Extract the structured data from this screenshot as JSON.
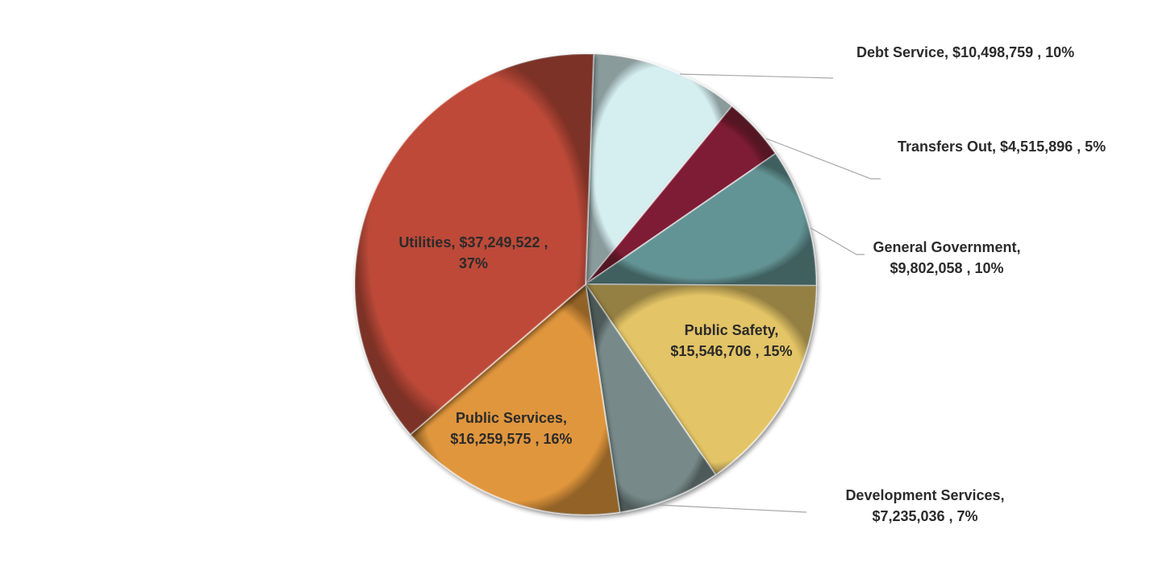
{
  "chart_data": {
    "type": "pie",
    "title": "",
    "slices": [
      {
        "name": "Debt Service",
        "value": 10498759,
        "value_label": "$10,498,759",
        "pct_label": "10%",
        "color": "#d5eef0",
        "label_lines": [
          "Debt Service,  $10,498,759 , 10%"
        ]
      },
      {
        "name": "Transfers Out",
        "value": 4515896,
        "value_label": "$4,515,896",
        "pct_label": "5%",
        "color": "#7f1d34",
        "label_lines": [
          "Transfers Out,  $4,515,896 , 5%"
        ]
      },
      {
        "name": "General Government",
        "value": 9802058,
        "value_label": "$9,802,058",
        "pct_label": "10%",
        "color": "#649495",
        "label_lines": [
          "General Government,",
          "$9,802,058 , 10%"
        ]
      },
      {
        "name": "Public Safety",
        "value": 15546706,
        "value_label": "$15,546,706",
        "pct_label": "15%",
        "color": "#e3c466",
        "label_lines": [
          "Public Safety,",
          "$15,546,706 , 15%"
        ]
      },
      {
        "name": "Development Services",
        "value": 7235036,
        "value_label": "$7,235,036",
        "pct_label": "7%",
        "color": "#778a89",
        "label_lines": [
          "Development Services,",
          "$7,235,036 , 7%"
        ]
      },
      {
        "name": "Public Services",
        "value": 16259575,
        "value_label": "$16,259,575",
        "pct_label": "16%",
        "color": "#e0963c",
        "label_lines": [
          "Public Services,",
          "$16,259,575 , 16%"
        ]
      },
      {
        "name": "Utilities",
        "value": 37249522,
        "value_label": "$37,249,522",
        "pct_label": "37%",
        "color": "#be4a39",
        "label_lines": [
          "Utilities,  $37,249,522 ,",
          "37%"
        ]
      }
    ]
  }
}
